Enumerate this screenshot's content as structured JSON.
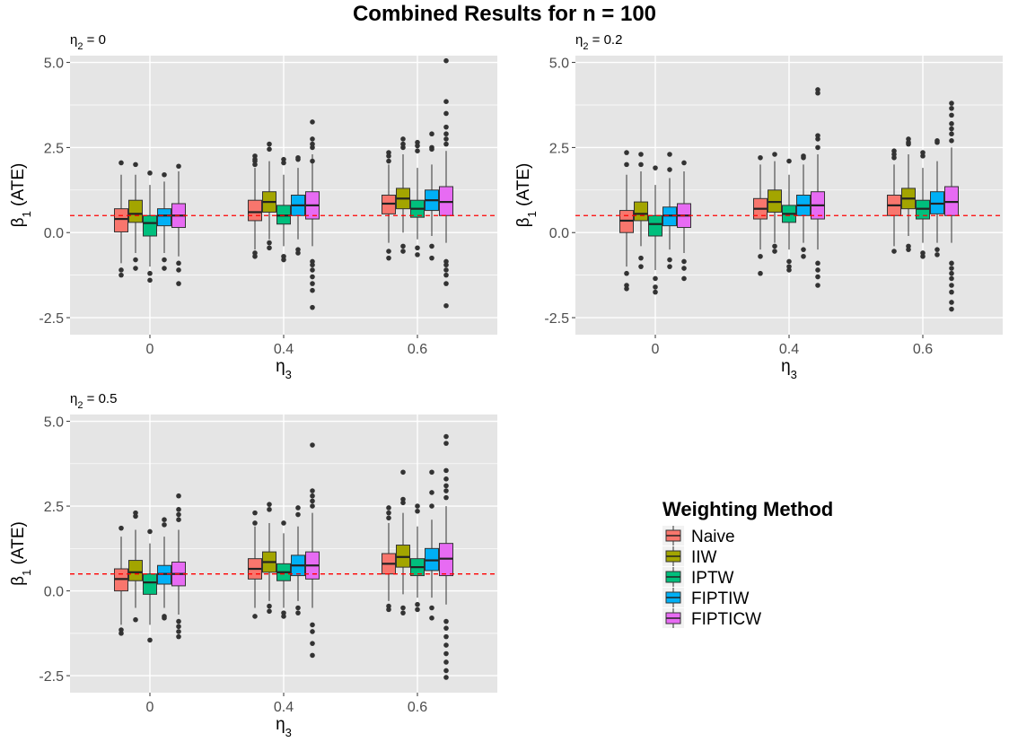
{
  "title": "Combined Results for n = 100",
  "colors": {
    "Naive": "#F8766D",
    "IIW": "#A3A500",
    "IPTW": "#00BF7D",
    "FIPTIW": "#00B0F6",
    "FIPTICW": "#E76BF3",
    "panel_bg": "#E5E5E5",
    "grid": "#FFFFFF",
    "reference_line": "#FF0000"
  },
  "legend": {
    "title": "Weighting Method",
    "items": [
      "Naive",
      "IIW",
      "IPTW",
      "FIPTIW",
      "FIPTICW"
    ]
  },
  "chart_data": [
    {
      "type": "box",
      "panel_label_base": "η",
      "panel_label_sub": "2",
      "panel_label_value": " = 0",
      "xlabel_base": "η",
      "xlabel_sub": "3",
      "ylabel_base": "β",
      "ylabel_sub": "1",
      "ylabel_rest": " (ATE)",
      "categories": [
        "0",
        "0.4",
        "0.6"
      ],
      "ylim": [
        -3.0,
        5.2
      ],
      "yticks": [
        -2.5,
        0.0,
        2.5,
        5.0
      ],
      "ytick_labels": [
        "-2.5",
        "0.0",
        "2.5",
        "5.0"
      ],
      "reference_line": 0.5,
      "series": [
        {
          "name": "Naive",
          "boxes": [
            {
              "q1": 0.02,
              "median": 0.4,
              "q3": 0.7,
              "lo": -0.9,
              "hi": 1.7,
              "out": [
                2.05,
                -1.1,
                -1.25
              ]
            },
            {
              "q1": 0.35,
              "median": 0.6,
              "q3": 0.95,
              "lo": -0.5,
              "hi": 1.9,
              "out": [
                2.25,
                2.15,
                2.1,
                2.0,
                -0.6,
                -0.7
              ]
            },
            {
              "q1": 0.55,
              "median": 0.85,
              "q3": 1.1,
              "lo": -0.3,
              "hi": 2.0,
              "out": [
                2.35,
                2.25,
                2.1,
                -0.55,
                -0.75
              ]
            }
          ]
        },
        {
          "name": "IIW",
          "boxes": [
            {
              "q1": 0.3,
              "median": 0.55,
              "q3": 0.95,
              "lo": -0.6,
              "hi": 1.7,
              "out": [
                2.0,
                -0.8,
                -1.05
              ]
            },
            {
              "q1": 0.6,
              "median": 0.9,
              "q3": 1.2,
              "lo": -0.2,
              "hi": 2.1,
              "out": [
                2.6,
                2.45,
                -0.3,
                -0.45
              ]
            },
            {
              "q1": 0.7,
              "median": 1.0,
              "q3": 1.3,
              "lo": 0.0,
              "hi": 2.3,
              "out": [
                2.75,
                2.6,
                2.5,
                -0.4,
                -0.55
              ]
            }
          ]
        },
        {
          "name": "IPTW",
          "boxes": [
            {
              "q1": -0.1,
              "median": 0.28,
              "q3": 0.5,
              "lo": -1.0,
              "hi": 1.4,
              "out": [
                1.75,
                -1.2,
                -1.4
              ]
            },
            {
              "q1": 0.25,
              "median": 0.5,
              "q3": 0.8,
              "lo": -0.4,
              "hi": 1.7,
              "out": [
                2.15,
                2.05,
                -0.7,
                -0.8
              ]
            },
            {
              "q1": 0.45,
              "median": 0.7,
              "q3": 0.95,
              "lo": -0.2,
              "hi": 1.9,
              "out": [
                2.65,
                2.55,
                2.4,
                -0.45,
                -0.65
              ]
            }
          ]
        },
        {
          "name": "FIPTIW",
          "boxes": [
            {
              "q1": 0.2,
              "median": 0.5,
              "q3": 0.7,
              "lo": -0.6,
              "hi": 1.5,
              "out": [
                1.7,
                -0.8,
                -1.05
              ]
            },
            {
              "q1": 0.5,
              "median": 0.8,
              "q3": 1.1,
              "lo": -0.2,
              "hi": 1.9,
              "out": [
                2.2,
                2.15,
                -0.5,
                -0.6
              ]
            },
            {
              "q1": 0.65,
              "median": 0.95,
              "q3": 1.25,
              "lo": -0.1,
              "hi": 2.0,
              "out": [
                2.5,
                2.45,
                2.9,
                -0.4,
                -0.75
              ]
            }
          ]
        },
        {
          "name": "FIPTICW",
          "boxes": [
            {
              "q1": 0.15,
              "median": 0.5,
              "q3": 0.85,
              "lo": -0.7,
              "hi": 1.8,
              "out": [
                1.95,
                -0.9,
                -1.1,
                -1.5
              ]
            },
            {
              "q1": 0.4,
              "median": 0.8,
              "q3": 1.2,
              "lo": -0.4,
              "hi": 2.3,
              "out": [
                2.5,
                2.6,
                2.75,
                3.25,
                2.1,
                -0.85,
                -0.95,
                -1.1,
                -1.3,
                -1.5,
                -1.7,
                -2.2
              ]
            },
            {
              "q1": 0.5,
              "median": 0.9,
              "q3": 1.35,
              "lo": -0.3,
              "hi": 2.4,
              "out": [
                2.6,
                2.75,
                2.9,
                3.1,
                3.5,
                3.85,
                5.05,
                -0.85,
                -0.95,
                -1.1,
                -1.25,
                -1.5,
                -2.15
              ]
            }
          ]
        }
      ]
    },
    {
      "type": "box",
      "panel_label_base": "η",
      "panel_label_sub": "2",
      "panel_label_value": " = 0.2",
      "xlabel_base": "η",
      "xlabel_sub": "3",
      "ylabel_base": "β",
      "ylabel_sub": "1",
      "ylabel_rest": " (ATE)",
      "categories": [
        "0",
        "0.4",
        "0.6"
      ],
      "ylim": [
        -3.0,
        5.2
      ],
      "yticks": [
        -2.5,
        0.0,
        2.5,
        5.0
      ],
      "ytick_labels": [
        "-2.5",
        "0.0",
        "2.5",
        "5.0"
      ],
      "reference_line": 0.5,
      "series": [
        {
          "name": "Naive",
          "boxes": [
            {
              "q1": 0.0,
              "median": 0.35,
              "q3": 0.65,
              "lo": -1.0,
              "hi": 1.7,
              "out": [
                2.35,
                2.0,
                -1.2,
                -1.55,
                -1.65
              ]
            },
            {
              "q1": 0.4,
              "median": 0.7,
              "q3": 1.0,
              "lo": -0.5,
              "hi": 2.0,
              "out": [
                2.2,
                -0.7,
                -1.2
              ]
            },
            {
              "q1": 0.5,
              "median": 0.8,
              "q3": 1.1,
              "lo": -0.4,
              "hi": 2.0,
              "out": [
                2.4,
                2.3,
                2.2,
                -0.55
              ]
            }
          ]
        },
        {
          "name": "IIW",
          "boxes": [
            {
              "q1": 0.35,
              "median": 0.55,
              "q3": 0.9,
              "lo": -0.4,
              "hi": 1.8,
              "out": [
                2.3,
                2.0,
                -0.75,
                -1.0
              ]
            },
            {
              "q1": 0.6,
              "median": 0.9,
              "q3": 1.25,
              "lo": -0.3,
              "hi": 2.1,
              "out": [
                2.3,
                -0.4,
                -0.55
              ]
            },
            {
              "q1": 0.7,
              "median": 1.0,
              "q3": 1.3,
              "lo": -0.1,
              "hi": 2.3,
              "out": [
                2.75,
                2.65,
                2.6,
                -0.4,
                -0.5
              ]
            }
          ]
        },
        {
          "name": "IPTW",
          "boxes": [
            {
              "q1": -0.1,
              "median": 0.25,
              "q3": 0.5,
              "lo": -1.1,
              "hi": 1.4,
              "out": [
                1.9,
                -1.35,
                -1.6,
                -1.75
              ]
            },
            {
              "q1": 0.3,
              "median": 0.55,
              "q3": 0.8,
              "lo": -0.5,
              "hi": 1.7,
              "out": [
                2.1,
                -0.85,
                -1.0,
                -1.1
              ]
            },
            {
              "q1": 0.4,
              "median": 0.7,
              "q3": 0.95,
              "lo": -0.3,
              "hi": 1.9,
              "out": [
                2.35,
                2.25,
                -0.6,
                -0.7
              ]
            }
          ]
        },
        {
          "name": "FIPTIW",
          "boxes": [
            {
              "q1": 0.2,
              "median": 0.5,
              "q3": 0.75,
              "lo": -0.5,
              "hi": 1.6,
              "out": [
                2.3,
                1.85,
                -0.8,
                -1.0
              ]
            },
            {
              "q1": 0.5,
              "median": 0.8,
              "q3": 1.1,
              "lo": -0.3,
              "hi": 2.0,
              "out": [
                2.25,
                2.2,
                -0.5,
                -0.7
              ]
            },
            {
              "q1": 0.55,
              "median": 0.85,
              "q3": 1.2,
              "lo": -0.3,
              "hi": 2.1,
              "out": [
                2.7,
                2.65,
                -0.5,
                -0.65
              ]
            }
          ]
        },
        {
          "name": "FIPTICW",
          "boxes": [
            {
              "q1": 0.15,
              "median": 0.5,
              "q3": 0.85,
              "lo": -0.6,
              "hi": 1.8,
              "out": [
                2.05,
                -0.85,
                -1.05,
                -1.35
              ]
            },
            {
              "q1": 0.4,
              "median": 0.8,
              "q3": 1.2,
              "lo": -0.5,
              "hi": 2.3,
              "out": [
                2.5,
                2.75,
                2.85,
                4.1,
                4.2,
                -0.9,
                -1.1,
                -1.3,
                -1.55
              ]
            },
            {
              "q1": 0.5,
              "median": 0.9,
              "q3": 1.35,
              "lo": -0.3,
              "hi": 2.5,
              "out": [
                2.7,
                2.9,
                3.05,
                3.2,
                3.45,
                3.65,
                3.8,
                -0.9,
                -1.05,
                -1.2,
                -1.35,
                -1.55,
                -1.75,
                -2.05,
                -2.25
              ]
            }
          ]
        }
      ]
    },
    {
      "type": "box",
      "panel_label_base": "η",
      "panel_label_sub": "2",
      "panel_label_value": " = 0.5",
      "xlabel_base": "η",
      "xlabel_sub": "3",
      "ylabel_base": "β",
      "ylabel_sub": "1",
      "ylabel_rest": " (ATE)",
      "categories": [
        "0",
        "0.4",
        "0.6"
      ],
      "ylim": [
        -3.0,
        5.2
      ],
      "yticks": [
        -2.5,
        0.0,
        2.5,
        5.0
      ],
      "ytick_labels": [
        "-2.5",
        "0.0",
        "2.5",
        "5.0"
      ],
      "reference_line": 0.5,
      "series": [
        {
          "name": "Naive",
          "boxes": [
            {
              "q1": 0.0,
              "median": 0.35,
              "q3": 0.65,
              "lo": -1.0,
              "hi": 1.6,
              "out": [
                1.85,
                -1.15,
                -1.25
              ]
            },
            {
              "q1": 0.35,
              "median": 0.65,
              "q3": 0.95,
              "lo": -0.5,
              "hi": 1.9,
              "out": [
                2.3,
                2.0,
                -0.75
              ]
            },
            {
              "q1": 0.5,
              "median": 0.8,
              "q3": 1.1,
              "lo": -0.3,
              "hi": 2.0,
              "out": [
                2.45,
                2.3,
                2.15,
                -0.45,
                -0.55
              ]
            }
          ]
        },
        {
          "name": "IIW",
          "boxes": [
            {
              "q1": 0.3,
              "median": 0.55,
              "q3": 0.9,
              "lo": -0.5,
              "hi": 1.8,
              "out": [
                2.3,
                2.2,
                -0.85
              ]
            },
            {
              "q1": 0.55,
              "median": 0.85,
              "q3": 1.15,
              "lo": -0.3,
              "hi": 2.0,
              "out": [
                2.55,
                2.4,
                -0.45,
                -0.6
              ]
            },
            {
              "q1": 0.7,
              "median": 1.0,
              "q3": 1.35,
              "lo": -0.1,
              "hi": 2.3,
              "out": [
                3.5,
                2.7,
                2.6,
                -0.5,
                -0.65
              ]
            }
          ]
        },
        {
          "name": "IPTW",
          "boxes": [
            {
              "q1": -0.1,
              "median": 0.25,
              "q3": 0.5,
              "lo": -1.0,
              "hi": 1.4,
              "out": [
                1.75,
                -1.45
              ]
            },
            {
              "q1": 0.3,
              "median": 0.55,
              "q3": 0.8,
              "lo": -0.5,
              "hi": 1.7,
              "out": [
                2.0,
                -0.65,
                -0.75
              ]
            },
            {
              "q1": 0.45,
              "median": 0.7,
              "q3": 0.95,
              "lo": -0.2,
              "hi": 1.9,
              "out": [
                2.5,
                2.35,
                -0.4,
                -0.55
              ]
            }
          ]
        },
        {
          "name": "FIPTIW",
          "boxes": [
            {
              "q1": 0.2,
              "median": 0.5,
              "q3": 0.75,
              "lo": -0.5,
              "hi": 1.6,
              "out": [
                2.1,
                1.95,
                -0.75,
                -0.8
              ]
            },
            {
              "q1": 0.45,
              "median": 0.75,
              "q3": 1.05,
              "lo": -0.3,
              "hi": 1.9,
              "out": [
                2.45,
                2.25,
                -0.5,
                -0.65
              ]
            },
            {
              "q1": 0.6,
              "median": 0.9,
              "q3": 1.25,
              "lo": -0.2,
              "hi": 2.1,
              "out": [
                3.5,
                2.9,
                2.5,
                -0.5,
                -0.8
              ]
            }
          ]
        },
        {
          "name": "FIPTICW",
          "boxes": [
            {
              "q1": 0.15,
              "median": 0.5,
              "q3": 0.85,
              "lo": -0.7,
              "hi": 1.8,
              "out": [
                2.1,
                2.25,
                2.4,
                2.8,
                -0.9,
                -1.05,
                -1.2,
                -1.35
              ]
            },
            {
              "q1": 0.35,
              "median": 0.75,
              "q3": 1.15,
              "lo": -0.5,
              "hi": 2.3,
              "out": [
                2.5,
                2.65,
                2.8,
                2.95,
                4.3,
                -1.0,
                -1.2,
                -1.55,
                -1.9
              ]
            },
            {
              "q1": 0.45,
              "median": 0.95,
              "q3": 1.4,
              "lo": -0.4,
              "hi": 2.5,
              "out": [
                2.75,
                2.95,
                3.1,
                3.3,
                3.55,
                4.35,
                4.55,
                -0.9,
                -1.1,
                -1.35,
                -1.6,
                -1.85,
                -2.1,
                -2.35,
                -2.55
              ]
            }
          ]
        }
      ]
    }
  ]
}
